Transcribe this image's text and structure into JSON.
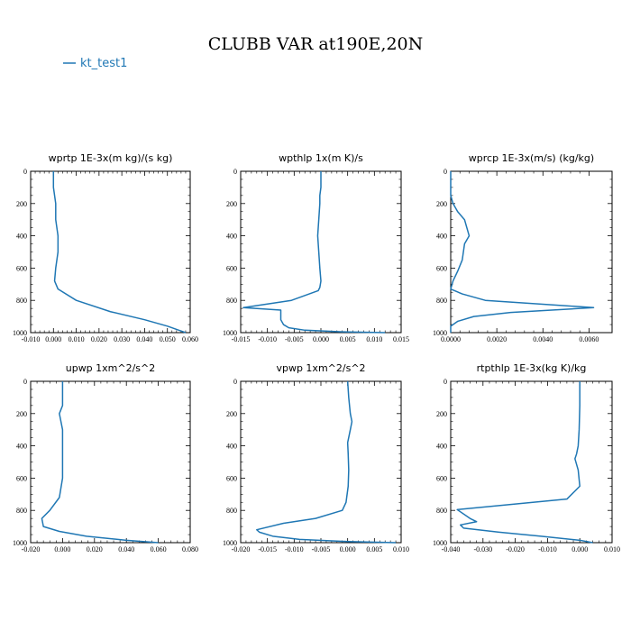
{
  "title": "CLUBB VAR at190E,20N",
  "legend": {
    "label": "kt_test1",
    "color": "#1f77b4"
  },
  "line_color": "#1f77b4",
  "chart_data": [
    {
      "type": "line",
      "title": "wprtp  1E-3x(m kg)/(s kg)",
      "xlim": [
        -0.01,
        0.06
      ],
      "ylim": [
        1000,
        0
      ],
      "xticks": [
        -0.01,
        0.0,
        0.01,
        0.02,
        0.03,
        0.04,
        0.05,
        0.06
      ],
      "xtick_labels": [
        "-0.010",
        "0.000",
        "0.010",
        "0.020",
        "0.030",
        "0.040",
        "0.050",
        "0.060"
      ],
      "yticks": [
        0,
        200,
        400,
        600,
        800,
        1000
      ],
      "ytick_labels": [
        "0",
        "200",
        "400",
        "600",
        "800",
        "1000"
      ],
      "series": [
        {
          "x": [
            0.0,
            0.0,
            0.001,
            0.001,
            0.002,
            0.002,
            0.001,
            0.0005,
            0.002,
            0.01,
            0.025,
            0.04,
            0.05,
            0.055,
            0.058
          ],
          "y": [
            0,
            100,
            200,
            300,
            400,
            500,
            600,
            680,
            730,
            800,
            870,
            920,
            960,
            985,
            1000
          ]
        }
      ]
    },
    {
      "type": "line",
      "title": "wpthlp  1x(m K)/s",
      "xlim": [
        -0.015,
        0.015
      ],
      "ylim": [
        1000,
        0
      ],
      "xticks": [
        -0.015,
        -0.01,
        -0.005,
        0.0,
        0.005,
        0.01,
        0.015
      ],
      "xtick_labels": [
        "-0.015",
        "-0.010",
        "-0.005",
        "0.000",
        "0.005",
        "0.010",
        "0.015"
      ],
      "yticks": [
        0,
        200,
        400,
        600,
        800,
        1000
      ],
      "ytick_labels": [
        "0",
        "200",
        "400",
        "600",
        "800",
        "1000"
      ],
      "series": [
        {
          "x": [
            0.0,
            0.0,
            -0.0002,
            -0.0002,
            -0.0004,
            -0.0006,
            -0.0004,
            -0.0002,
            0.0,
            -0.0002,
            -0.0005,
            -0.0055,
            -0.0145,
            -0.0075,
            -0.0075,
            -0.007,
            -0.006,
            -0.003,
            0.004,
            0.012
          ],
          "y": [
            0,
            100,
            150,
            200,
            300,
            400,
            500,
            600,
            680,
            720,
            740,
            800,
            845,
            860,
            920,
            950,
            970,
            985,
            995,
            1000
          ]
        }
      ]
    },
    {
      "type": "line",
      "title": "wprcp  1E-3x(m/s) (kg/kg)",
      "xlim": [
        0.0,
        0.007
      ],
      "ylim": [
        1000,
        0
      ],
      "xticks": [
        0.0,
        0.002,
        0.004,
        0.006
      ],
      "xtick_labels": [
        "0.0000",
        "0.0020",
        "0.0040",
        "0.0060"
      ],
      "yticks": [
        0,
        200,
        400,
        600,
        800,
        1000
      ],
      "ytick_labels": [
        "0",
        "200",
        "400",
        "600",
        "800",
        "1000"
      ],
      "series": [
        {
          "x": [
            0.0,
            0.0,
            0.0001,
            0.0003,
            0.0006,
            0.0008,
            0.0006,
            0.0005,
            0.0003,
            0.0001,
            0.0,
            0.0005,
            0.0015,
            0.0062,
            0.0026,
            0.001,
            0.0003,
            0.0,
            0.0
          ],
          "y": [
            0,
            150,
            200,
            250,
            300,
            400,
            450,
            550,
            620,
            680,
            730,
            760,
            800,
            845,
            875,
            900,
            930,
            960,
            1000
          ]
        }
      ]
    },
    {
      "type": "line",
      "title": "upwp  1xm^2/s^2",
      "xlim": [
        -0.02,
        0.08
      ],
      "ylim": [
        1000,
        0
      ],
      "xticks": [
        -0.02,
        0.0,
        0.02,
        0.04,
        0.06,
        0.08
      ],
      "xtick_labels": [
        "-0.020",
        "0.000",
        "0.020",
        "0.040",
        "0.060",
        "0.080"
      ],
      "yticks": [
        0,
        200,
        400,
        600,
        800,
        1000
      ],
      "ytick_labels": [
        "0",
        "200",
        "400",
        "600",
        "800",
        "1000"
      ],
      "series": [
        {
          "x": [
            0.0,
            0.0,
            0.0,
            -0.002,
            -0.001,
            0.0,
            0.0,
            0.0,
            0.0,
            -0.002,
            -0.008,
            -0.013,
            -0.012,
            -0.002,
            0.015,
            0.04,
            0.06
          ],
          "y": [
            0,
            100,
            150,
            200,
            250,
            300,
            400,
            500,
            600,
            720,
            800,
            850,
            900,
            930,
            960,
            985,
            1000
          ]
        }
      ]
    },
    {
      "type": "line",
      "title": "vpwp  1xm^2/s^2",
      "xlim": [
        -0.02,
        0.01
      ],
      "ylim": [
        1000,
        0
      ],
      "xticks": [
        -0.02,
        -0.015,
        -0.01,
        -0.005,
        0.0,
        0.005,
        0.01
      ],
      "xtick_labels": [
        "-0.020",
        "-0.015",
        "-0.010",
        "-0.005",
        "0.000",
        "0.005",
        "0.010"
      ],
      "yticks": [
        0,
        200,
        400,
        600,
        800,
        1000
      ],
      "ytick_labels": [
        "0",
        "200",
        "400",
        "600",
        "800",
        "1000"
      ],
      "series": [
        {
          "x": [
            0.0,
            0.0002,
            0.0005,
            0.0008,
            0.0005,
            0.0,
            0.0001,
            0.0002,
            0.0001,
            -0.0003,
            -0.001,
            -0.006,
            -0.012,
            -0.017,
            -0.0165,
            -0.014,
            -0.009,
            0.0,
            0.009
          ],
          "y": [
            0,
            100,
            200,
            250,
            300,
            380,
            450,
            550,
            650,
            750,
            800,
            850,
            880,
            920,
            935,
            960,
            980,
            993,
            1000
          ]
        }
      ]
    },
    {
      "type": "line",
      "title": "rtpthlp  1E-3x(kg K)/kg",
      "xlim": [
        -0.04,
        0.01
      ],
      "ylim": [
        1000,
        0
      ],
      "xticks": [
        -0.04,
        -0.03,
        -0.02,
        -0.01,
        0.0,
        0.01
      ],
      "xtick_labels": [
        "-0.040",
        "-0.030",
        "-0.020",
        "-0.010",
        "0.000",
        "0.010"
      ],
      "yticks": [
        0,
        200,
        400,
        600,
        800,
        1000
      ],
      "ytick_labels": [
        "0",
        "200",
        "400",
        "600",
        "800",
        "1000"
      ],
      "series": [
        {
          "x": [
            0.0,
            0.0,
            -0.0002,
            -0.0005,
            -0.001,
            -0.0015,
            -0.0005,
            0.0,
            -0.004,
            -0.038,
            -0.034,
            -0.032,
            -0.037,
            -0.036,
            -0.025,
            -0.012,
            0.0,
            0.004
          ],
          "y": [
            0,
            150,
            300,
            400,
            450,
            480,
            550,
            650,
            730,
            795,
            850,
            870,
            890,
            910,
            935,
            960,
            985,
            1000
          ]
        }
      ]
    }
  ]
}
